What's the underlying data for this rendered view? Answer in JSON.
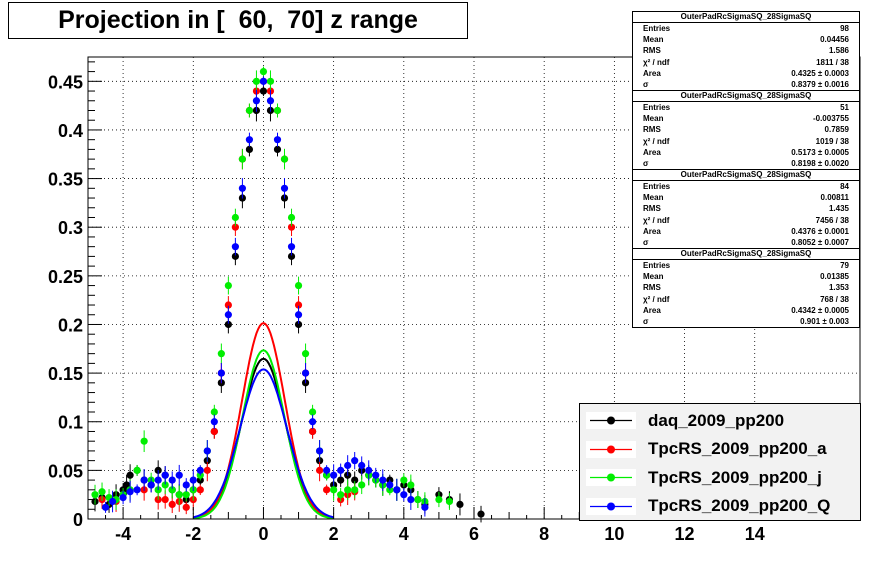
{
  "title": "Projection in [  60,  70] z range",
  "chart_data": {
    "type": "scatter",
    "xlim": [
      -5,
      17
    ],
    "ylim": [
      0,
      0.475
    ],
    "grid": true,
    "x_ticks": [
      -4,
      -2,
      0,
      2,
      4,
      6,
      8,
      10,
      12,
      14
    ],
    "x_tick_labels": [
      "-4",
      "-2",
      "0",
      "2",
      "4",
      "6",
      "8",
      "10",
      "12",
      "14"
    ],
    "y_ticks": [
      0,
      0.05,
      0.1,
      0.15,
      0.2,
      0.25,
      0.3,
      0.35,
      0.4,
      0.45
    ],
    "y_tick_labels": [
      "0",
      "0.05",
      "0.1",
      "0.15",
      "0.2",
      "0.25",
      "0.3",
      "0.35",
      "0.4",
      "0.45"
    ],
    "series": [
      {
        "name": "daq_2009_pp200",
        "color": "#000000",
        "fit_sigma": 0.8379,
        "fit_area": 0.4325,
        "points": [
          [
            -4.8,
            0.018
          ],
          [
            -4.6,
            0.022
          ],
          [
            -4.4,
            0.015
          ],
          [
            -4.2,
            0.025
          ],
          [
            -4.0,
            0.03
          ],
          [
            -3.9,
            0.035
          ],
          [
            -3.8,
            0.045
          ],
          [
            -3.6,
            0.05
          ],
          [
            -3.4,
            0.04
          ],
          [
            -3.2,
            0.035
          ],
          [
            -3.0,
            0.05
          ],
          [
            -2.8,
            0.045
          ],
          [
            -2.6,
            0.03
          ],
          [
            -2.4,
            0.025
          ],
          [
            -2.2,
            0.02
          ],
          [
            -2.0,
            0.03
          ],
          [
            -1.8,
            0.04
          ],
          [
            -1.6,
            0.06
          ],
          [
            -1.4,
            0.09
          ],
          [
            -1.2,
            0.14
          ],
          [
            -1.0,
            0.2
          ],
          [
            -0.8,
            0.27
          ],
          [
            -0.6,
            0.33
          ],
          [
            -0.4,
            0.38
          ],
          [
            -0.2,
            0.42
          ],
          [
            0.0,
            0.44
          ],
          [
            0.2,
            0.42
          ],
          [
            0.4,
            0.38
          ],
          [
            0.6,
            0.33
          ],
          [
            0.8,
            0.27
          ],
          [
            1.0,
            0.2
          ],
          [
            1.2,
            0.14
          ],
          [
            1.4,
            0.09
          ],
          [
            1.6,
            0.06
          ],
          [
            1.8,
            0.045
          ],
          [
            2.0,
            0.035
          ],
          [
            2.2,
            0.04
          ],
          [
            2.4,
            0.045
          ],
          [
            2.6,
            0.04
          ],
          [
            2.8,
            0.05
          ],
          [
            3.0,
            0.045
          ],
          [
            3.2,
            0.04
          ],
          [
            3.4,
            0.035
          ],
          [
            3.6,
            0.04
          ],
          [
            3.8,
            0.03
          ],
          [
            4.0,
            0.035
          ],
          [
            4.2,
            0.03
          ],
          [
            4.4,
            0.02
          ],
          [
            4.6,
            0.015
          ],
          [
            5.0,
            0.025
          ],
          [
            5.3,
            0.02
          ],
          [
            5.6,
            0.015
          ],
          [
            6.2,
            0.005
          ]
        ]
      },
      {
        "name": "TpcRS_2009_pp200_a",
        "color": "#ff0000",
        "fit_sigma": 0.8198,
        "fit_area": 0.5173,
        "points": [
          [
            -4.6,
            0.02
          ],
          [
            -4.2,
            0.018
          ],
          [
            -3.4,
            0.03
          ],
          [
            -3.0,
            0.02
          ],
          [
            -2.8,
            0.02
          ],
          [
            -2.6,
            0.015
          ],
          [
            -2.4,
            0.018
          ],
          [
            -2.2,
            0.012
          ],
          [
            -2.0,
            0.02
          ],
          [
            -1.8,
            0.03
          ],
          [
            -1.6,
            0.05
          ],
          [
            -1.4,
            0.09
          ],
          [
            -1.2,
            0.15
          ],
          [
            -1.0,
            0.22
          ],
          [
            -0.8,
            0.3
          ],
          [
            -0.6,
            0.37
          ],
          [
            -0.4,
            0.42
          ],
          [
            -0.2,
            0.44
          ],
          [
            0.0,
            0.45
          ],
          [
            0.2,
            0.44
          ],
          [
            0.4,
            0.42
          ],
          [
            0.6,
            0.37
          ],
          [
            0.8,
            0.3
          ],
          [
            1.0,
            0.22
          ],
          [
            1.2,
            0.15
          ],
          [
            1.4,
            0.09
          ],
          [
            1.6,
            0.05
          ],
          [
            1.8,
            0.03
          ],
          [
            2.2,
            0.02
          ],
          [
            2.4,
            0.025
          ],
          [
            2.6,
            0.028
          ]
        ]
      },
      {
        "name": "TpcRS_2009_pp200_j",
        "color": "#00ee00",
        "fit_sigma": 0.8052,
        "fit_area": 0.4376,
        "points": [
          [
            -4.8,
            0.025
          ],
          [
            -4.6,
            0.028
          ],
          [
            -4.4,
            0.022
          ],
          [
            -4.2,
            0.02
          ],
          [
            -4.0,
            0.025
          ],
          [
            -3.8,
            0.03
          ],
          [
            -3.6,
            0.05
          ],
          [
            -3.4,
            0.08
          ],
          [
            -3.2,
            0.04
          ],
          [
            -3.0,
            0.03
          ],
          [
            -2.8,
            0.035
          ],
          [
            -2.6,
            0.03
          ],
          [
            -2.4,
            0.025
          ],
          [
            -2.2,
            0.025
          ],
          [
            -2.0,
            0.03
          ],
          [
            -1.8,
            0.045
          ],
          [
            -1.6,
            0.07
          ],
          [
            -1.4,
            0.11
          ],
          [
            -1.2,
            0.17
          ],
          [
            -1.0,
            0.24
          ],
          [
            -0.8,
            0.31
          ],
          [
            -0.6,
            0.37
          ],
          [
            -0.4,
            0.42
          ],
          [
            -0.2,
            0.45
          ],
          [
            0.0,
            0.46
          ],
          [
            0.2,
            0.45
          ],
          [
            0.4,
            0.42
          ],
          [
            0.6,
            0.37
          ],
          [
            0.8,
            0.31
          ],
          [
            1.0,
            0.24
          ],
          [
            1.2,
            0.17
          ],
          [
            1.4,
            0.11
          ],
          [
            1.6,
            0.07
          ],
          [
            1.8,
            0.045
          ],
          [
            2.0,
            0.03
          ],
          [
            2.2,
            0.025
          ],
          [
            2.4,
            0.03
          ],
          [
            2.6,
            0.03
          ],
          [
            2.8,
            0.035
          ],
          [
            3.0,
            0.045
          ],
          [
            3.2,
            0.04
          ],
          [
            3.4,
            0.035
          ],
          [
            3.6,
            0.03
          ],
          [
            3.8,
            0.03
          ],
          [
            4.0,
            0.04
          ],
          [
            4.2,
            0.035
          ],
          [
            4.4,
            0.02
          ],
          [
            4.6,
            0.018
          ],
          [
            5.0,
            0.02
          ],
          [
            5.3,
            0.018
          ]
        ]
      },
      {
        "name": "TpcRS_2009_pp200_Q",
        "color": "#0000ff",
        "fit_sigma": 0.901,
        "fit_area": 0.4342,
        "points": [
          [
            -4.5,
            0.012
          ],
          [
            -4.3,
            0.018
          ],
          [
            -4.0,
            0.022
          ],
          [
            -3.8,
            0.028
          ],
          [
            -3.6,
            0.03
          ],
          [
            -3.4,
            0.04
          ],
          [
            -3.2,
            0.035
          ],
          [
            -3.0,
            0.04
          ],
          [
            -2.8,
            0.045
          ],
          [
            -2.6,
            0.04
          ],
          [
            -2.4,
            0.045
          ],
          [
            -2.2,
            0.035
          ],
          [
            -2.0,
            0.04
          ],
          [
            -1.8,
            0.05
          ],
          [
            -1.6,
            0.07
          ],
          [
            -1.4,
            0.1
          ],
          [
            -1.2,
            0.15
          ],
          [
            -1.0,
            0.21
          ],
          [
            -0.8,
            0.28
          ],
          [
            -0.6,
            0.34
          ],
          [
            -0.4,
            0.39
          ],
          [
            -0.2,
            0.43
          ],
          [
            0.0,
            0.45
          ],
          [
            0.2,
            0.43
          ],
          [
            0.4,
            0.39
          ],
          [
            0.6,
            0.34
          ],
          [
            0.8,
            0.28
          ],
          [
            1.0,
            0.21
          ],
          [
            1.2,
            0.15
          ],
          [
            1.4,
            0.1
          ],
          [
            1.6,
            0.07
          ],
          [
            1.8,
            0.05
          ],
          [
            2.0,
            0.045
          ],
          [
            2.2,
            0.05
          ],
          [
            2.4,
            0.055
          ],
          [
            2.6,
            0.06
          ],
          [
            2.8,
            0.055
          ],
          [
            3.0,
            0.05
          ],
          [
            3.2,
            0.045
          ],
          [
            3.4,
            0.04
          ],
          [
            3.6,
            0.035
          ],
          [
            3.8,
            0.03
          ],
          [
            4.0,
            0.025
          ],
          [
            4.2,
            0.02
          ],
          [
            4.6,
            0.012
          ]
        ]
      }
    ]
  },
  "stats": [
    {
      "header": "OuterPadRcSigmaSQ_28SigmaSQ",
      "rows": [
        [
          "Entries",
          "98"
        ],
        [
          "Mean",
          "0.04456"
        ],
        [
          "RMS",
          "1.586"
        ],
        [
          "χ² / ndf",
          "1811 / 38"
        ],
        [
          "Area",
          "0.4325 ± 0.0003"
        ],
        [
          "σ",
          "0.8379 ± 0.0016"
        ]
      ]
    },
    {
      "header": "OuterPadRcSigmaSQ_28SigmaSQ",
      "rows": [
        [
          "Entries",
          "51"
        ],
        [
          "Mean",
          "-0.003755"
        ],
        [
          "RMS",
          "0.7859"
        ],
        [
          "χ² / ndf",
          "1019 / 38"
        ],
        [
          "Area",
          "0.5173 ± 0.0005"
        ],
        [
          "σ",
          "0.8198 ± 0.0020"
        ]
      ]
    },
    {
      "header": "OuterPadRcSigmaSQ_28SigmaSQ",
      "rows": [
        [
          "Entries",
          "84"
        ],
        [
          "Mean",
          "0.00811"
        ],
        [
          "RMS",
          "1.435"
        ],
        [
          "χ² / ndf",
          "7456 / 38"
        ],
        [
          "Area",
          "0.4376 ± 0.0001"
        ],
        [
          "σ",
          "0.8052 ± 0.0007"
        ]
      ]
    },
    {
      "header": "OuterPadRcSigmaSQ_28SigmaSQ",
      "rows": [
        [
          "Entries",
          "79"
        ],
        [
          "Mean",
          "0.01385"
        ],
        [
          "RMS",
          "1.353"
        ],
        [
          "χ² / ndf",
          "768 / 38"
        ],
        [
          "Area",
          "0.4342 ± 0.0005"
        ],
        [
          "σ",
          "0.901 ± 0.003"
        ]
      ]
    }
  ],
  "legend": [
    {
      "label": "daq_2009_pp200",
      "color": "#000000"
    },
    {
      "label": "TpcRS_2009_pp200_a",
      "color": "#ff0000"
    },
    {
      "label": "TpcRS_2009_pp200_j",
      "color": "#00ee00"
    },
    {
      "label": "TpcRS_2009_pp200_Q",
      "color": "#0000ff"
    }
  ]
}
